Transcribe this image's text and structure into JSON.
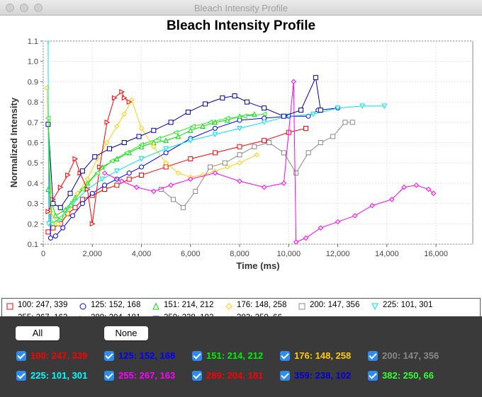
{
  "window": {
    "title": "Bleach Intensity Profile"
  },
  "chart_data": {
    "type": "line",
    "title": "Bleach Intensity Profile",
    "xlabel": "Time (ms)",
    "ylabel": "Normalized Intensity",
    "xlim": [
      0,
      17500
    ],
    "ylim": [
      0.1,
      1.1
    ],
    "x_ticks": [
      0,
      2000,
      4000,
      6000,
      8000,
      10000,
      12000,
      14000,
      16000
    ],
    "x_tick_labels": [
      "0",
      "2,000",
      "4,000",
      "6,000",
      "8,000",
      "10,000",
      "12,000",
      "14,000",
      "16,000"
    ],
    "y_ticks": [
      0.1,
      0.2,
      0.3,
      0.4,
      0.5,
      0.6,
      0.7,
      0.8,
      0.9,
      1.0,
      1.1
    ],
    "y_tick_labels": [
      "0.1",
      "0.2",
      "0.3",
      "0.4",
      "0.5",
      "0.6",
      "0.7",
      "0.8",
      "0.9",
      "1.0",
      "1.1"
    ],
    "grid": true,
    "legend_position": "bottom",
    "series": [
      {
        "name": "100: 247, 339",
        "color": "#ff0000",
        "marker": "square",
        "points": [
          [
            200,
            0.16
          ],
          [
            400,
            0.18
          ],
          [
            700,
            0.2
          ],
          [
            1000,
            0.25
          ],
          [
            1300,
            0.28
          ],
          [
            1600,
            0.32
          ],
          [
            2000,
            0.34
          ],
          [
            2500,
            0.37
          ],
          [
            3000,
            0.39
          ],
          [
            3500,
            0.42
          ],
          [
            4000,
            0.44
          ],
          [
            5000,
            0.48
          ],
          [
            6000,
            0.52
          ],
          [
            7000,
            0.55
          ],
          [
            8000,
            0.58
          ],
          [
            9000,
            0.61
          ],
          [
            10000,
            0.65
          ],
          [
            10700,
            0.67
          ]
        ]
      },
      {
        "name": "125: 152, 168",
        "color": "#0000ff",
        "marker": "circle",
        "points": [
          [
            200,
            0.69
          ],
          [
            300,
            0.13
          ],
          [
            500,
            0.14
          ],
          [
            800,
            0.18
          ],
          [
            1200,
            0.24
          ],
          [
            1600,
            0.3
          ],
          [
            2000,
            0.35
          ],
          [
            2500,
            0.39
          ],
          [
            3000,
            0.42
          ],
          [
            3500,
            0.45
          ],
          [
            4000,
            0.48
          ],
          [
            5000,
            0.55
          ],
          [
            6000,
            0.62
          ],
          [
            7000,
            0.67
          ],
          [
            8000,
            0.71
          ],
          [
            9000,
            0.72
          ],
          [
            10000,
            0.73
          ],
          [
            10800,
            0.73
          ],
          [
            11200,
            0.76
          ],
          [
            12000,
            0.77
          ]
        ]
      },
      {
        "name": "151: 214, 212",
        "color": "#00dd00",
        "marker": "triangle",
        "points": [
          [
            200,
            0.37
          ],
          [
            500,
            0.24
          ],
          [
            900,
            0.27
          ],
          [
            1300,
            0.33
          ],
          [
            1800,
            0.4
          ],
          [
            2400,
            0.48
          ],
          [
            3000,
            0.52
          ],
          [
            3500,
            0.55
          ],
          [
            4000,
            0.58
          ],
          [
            4500,
            0.6
          ],
          [
            5000,
            0.61
          ],
          [
            5500,
            0.63
          ],
          [
            6000,
            0.66
          ],
          [
            6500,
            0.68
          ],
          [
            7000,
            0.7
          ],
          [
            7500,
            0.71
          ],
          [
            8000,
            0.73
          ],
          [
            8600,
            0.74
          ]
        ]
      },
      {
        "name": "176: 148, 258",
        "color": "#ffcc00",
        "marker": "diamond",
        "points": [
          [
            150,
            0.87
          ],
          [
            300,
            0.26
          ],
          [
            600,
            0.2
          ],
          [
            1000,
            0.25
          ],
          [
            1400,
            0.35
          ],
          [
            1800,
            0.42
          ],
          [
            2200,
            0.52
          ],
          [
            2600,
            0.6
          ],
          [
            3000,
            0.68
          ],
          [
            3300,
            0.74
          ],
          [
            3600,
            0.81
          ],
          [
            4000,
            0.67
          ],
          [
            4500,
            0.58
          ],
          [
            5000,
            0.5
          ],
          [
            5500,
            0.45
          ],
          [
            6000,
            0.43
          ],
          [
            6500,
            0.44
          ],
          [
            7000,
            0.46
          ],
          [
            7500,
            0.48
          ],
          [
            8000,
            0.5
          ],
          [
            8700,
            0.54
          ]
        ]
      },
      {
        "name": "200: 147, 356",
        "color": "#888888",
        "marker": "square",
        "points": [
          [
            4800,
            0.37
          ],
          [
            5300,
            0.32
          ],
          [
            5700,
            0.28
          ],
          [
            6200,
            0.36
          ],
          [
            6800,
            0.48
          ],
          [
            7400,
            0.5
          ],
          [
            8000,
            0.54
          ],
          [
            8600,
            0.58
          ],
          [
            9200,
            0.6
          ],
          [
            9800,
            0.55
          ],
          [
            10300,
            0.45
          ],
          [
            10800,
            0.55
          ],
          [
            11300,
            0.6
          ],
          [
            11800,
            0.63
          ],
          [
            12300,
            0.7
          ],
          [
            12600,
            0.7
          ]
        ]
      },
      {
        "name": "225: 101, 301",
        "color": "#00e5e5",
        "marker": "triangle-down",
        "points": [
          [
            200,
            1.1
          ],
          [
            220,
            0.2
          ],
          [
            700,
            0.22
          ],
          [
            1200,
            0.3
          ],
          [
            1800,
            0.37
          ],
          [
            2400,
            0.42
          ],
          [
            3000,
            0.46
          ],
          [
            4000,
            0.52
          ],
          [
            5000,
            0.57
          ],
          [
            6000,
            0.61
          ],
          [
            7000,
            0.64
          ],
          [
            8000,
            0.67
          ],
          [
            9000,
            0.7
          ],
          [
            10000,
            0.73
          ],
          [
            11000,
            0.74
          ],
          [
            12000,
            0.77
          ],
          [
            13000,
            0.78
          ],
          [
            13900,
            0.78
          ]
        ]
      },
      {
        "name": "255: 267, 163",
        "color": "#ff00ff",
        "marker": "diamond",
        "points": [
          [
            2500,
            0.45
          ],
          [
            3200,
            0.41
          ],
          [
            3800,
            0.38
          ],
          [
            4500,
            0.36
          ],
          [
            5200,
            0.39
          ],
          [
            6000,
            0.42
          ],
          [
            7000,
            0.45
          ],
          [
            8000,
            0.41
          ],
          [
            9000,
            0.38
          ],
          [
            9800,
            0.4
          ],
          [
            10200,
            0.9
          ],
          [
            10300,
            0.11
          ],
          [
            10700,
            0.13
          ],
          [
            11300,
            0.18
          ],
          [
            12000,
            0.21
          ],
          [
            12700,
            0.24
          ],
          [
            13400,
            0.29
          ],
          [
            14200,
            0.32
          ],
          [
            14700,
            0.38
          ],
          [
            15200,
            0.39
          ],
          [
            15700,
            0.37
          ],
          [
            15900,
            0.35
          ]
        ]
      },
      {
        "name": "289: 204, 181",
        "color": "#ff0000",
        "marker": "triangle-right",
        "points": [
          [
            200,
            0.26
          ],
          [
            400,
            0.32
          ],
          [
            700,
            0.38
          ],
          [
            1000,
            0.44
          ],
          [
            1300,
            0.52
          ],
          [
            1500,
            0.45
          ],
          [
            1800,
            0.37
          ],
          [
            2000,
            0.2
          ],
          [
            2300,
            0.48
          ],
          [
            2600,
            0.7
          ],
          [
            2900,
            0.82
          ],
          [
            3200,
            0.85
          ],
          [
            3300,
            0.82
          ],
          [
            3500,
            0.8
          ]
        ]
      },
      {
        "name": "359: 238, 102",
        "color": "#0000aa",
        "marker": "square",
        "points": [
          [
            200,
            0.69
          ],
          [
            400,
            0.3
          ],
          [
            700,
            0.28
          ],
          [
            1100,
            0.35
          ],
          [
            1600,
            0.46
          ],
          [
            2100,
            0.53
          ],
          [
            2700,
            0.57
          ],
          [
            3300,
            0.6
          ],
          [
            3900,
            0.63
          ],
          [
            4500,
            0.66
          ],
          [
            5200,
            0.7
          ],
          [
            5900,
            0.75
          ],
          [
            6600,
            0.79
          ],
          [
            7300,
            0.82
          ],
          [
            7800,
            0.83
          ],
          [
            8300,
            0.8
          ],
          [
            9000,
            0.77
          ],
          [
            9800,
            0.73
          ],
          [
            10500,
            0.76
          ],
          [
            11100,
            0.92
          ],
          [
            11300,
            0.76
          ]
        ]
      },
      {
        "name": "382: 250, 66",
        "color": "#22ee22",
        "marker": "triangle-left",
        "points": [
          [
            200,
            0.72
          ],
          [
            350,
            0.2
          ],
          [
            700,
            0.23
          ],
          [
            1100,
            0.29
          ],
          [
            1600,
            0.37
          ],
          [
            2200,
            0.45
          ],
          [
            2800,
            0.51
          ],
          [
            3400,
            0.55
          ],
          [
            4000,
            0.59
          ],
          [
            4700,
            0.62
          ],
          [
            5400,
            0.65
          ],
          [
            6100,
            0.68
          ],
          [
            6800,
            0.7
          ],
          [
            7500,
            0.72
          ],
          [
            8200,
            0.73
          ],
          [
            9000,
            0.74
          ]
        ]
      }
    ]
  },
  "controls": {
    "all_label": "All",
    "none_label": "None",
    "checkboxes": [
      {
        "label": "100: 247, 339",
        "color": "#ff0000"
      },
      {
        "label": "125: 152, 168",
        "color": "#0000ff"
      },
      {
        "label": "151: 214, 212",
        "color": "#00ee00"
      },
      {
        "label": "176: 148, 258",
        "color": "#ffcc00"
      },
      {
        "label": "200: 147, 356",
        "color": "#888888"
      },
      {
        "label": "225: 101, 301",
        "color": "#00ffff"
      },
      {
        "label": "255: 267, 163",
        "color": "#ff00ff"
      },
      {
        "label": "289: 204, 181",
        "color": "#ff0000"
      },
      {
        "label": "359: 238, 102",
        "color": "#0000dd"
      },
      {
        "label": "382: 250, 66",
        "color": "#33ff33"
      }
    ]
  }
}
